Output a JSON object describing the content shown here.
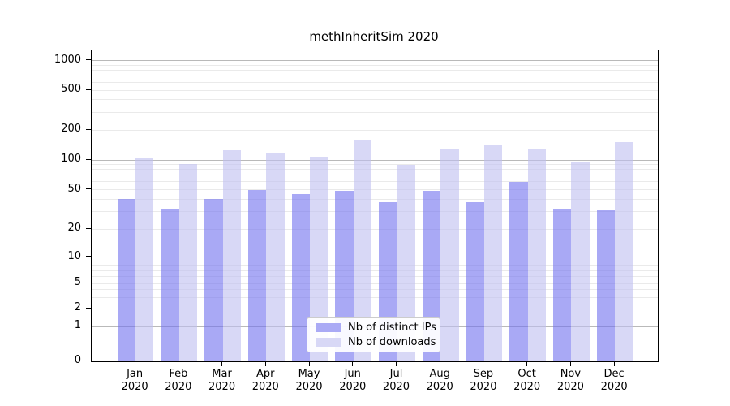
{
  "title": "methInheritSim 2020",
  "legend": {
    "items": [
      {
        "label": "Nb of distinct IPs",
        "color": "#aaaaf5"
      },
      {
        "label": "Nb of downloads",
        "color": "#d8d8f6"
      }
    ]
  },
  "chart_data": {
    "type": "bar",
    "title": "methInheritSim 2020",
    "categories": [
      "Jan 2020",
      "Feb 2020",
      "Mar 2020",
      "Apr 2020",
      "May 2020",
      "Jun 2020",
      "Jul 2020",
      "Aug 2020",
      "Sep 2020",
      "Oct 2020",
      "Nov 2020",
      "Dec 2020"
    ],
    "x_tick_month": [
      "Jan",
      "Feb",
      "Mar",
      "Apr",
      "May",
      "Jun",
      "Jul",
      "Aug",
      "Sep",
      "Oct",
      "Nov",
      "Dec"
    ],
    "x_tick_year": "2020",
    "series": [
      {
        "name": "Nb of distinct IPs",
        "fill": "rgba(112,112,238,0.6)",
        "solid": "#aaaaf5",
        "values": [
          40,
          32,
          40,
          50,
          45,
          49,
          37,
          49,
          37,
          60,
          32,
          31
        ]
      },
      {
        "name": "Nb of downloads",
        "fill": "rgba(190,190,240,0.6)",
        "solid": "#d8d8f6",
        "values": [
          104,
          91,
          126,
          117,
          107,
          160,
          90,
          131,
          140,
          127,
          97,
          152
        ]
      }
    ],
    "xlabel": "",
    "ylabel": "",
    "y_axis": {
      "scale": "log-like (log above 1, compressed linear segment 0-1)",
      "tick_values": [
        0,
        1,
        2,
        5,
        10,
        20,
        50,
        100,
        200,
        500,
        1000
      ],
      "tick_labels": [
        "0",
        "1",
        "2",
        "5",
        "10",
        "20",
        "50",
        "100",
        "200",
        "500",
        "1000"
      ],
      "range": [
        0,
        1200
      ]
    },
    "grid": {
      "enabled": true,
      "major_values": [
        1,
        10,
        100,
        1000
      ],
      "minor_values": [
        2,
        3,
        4,
        5,
        6,
        7,
        8,
        9,
        20,
        30,
        40,
        50,
        60,
        70,
        80,
        90,
        200,
        300,
        400,
        500,
        600,
        700,
        800,
        900
      ],
      "major_color": "#b9b9b9",
      "minor_color": "#eaeaea"
    },
    "legend_position": "inside bottom-center",
    "bar_orientation": "vertical",
    "grouped": true
  },
  "colors": {
    "background": "#ffffff",
    "axis": "#000000",
    "text": "#000000",
    "bar_distinct_ips": "#aaaaf5",
    "bar_downloads": "#d8d8f6",
    "legend_border": "#cccccc"
  }
}
